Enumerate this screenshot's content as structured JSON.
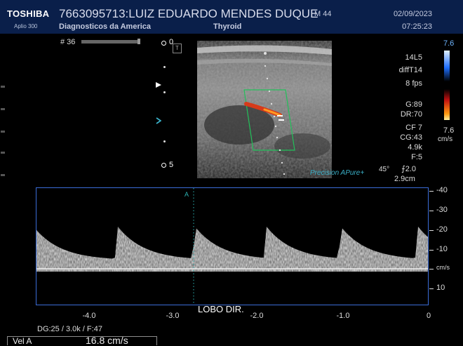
{
  "header": {
    "brand": "TOSHIBA",
    "model": "Aplio 300",
    "patient_line": "7663095713:LUIZ EDUARDO MENDES DUQUE",
    "sex_age": "M 44",
    "institution": "Diagnosticos da America",
    "preset": "Thyroid",
    "date": "02/09/2023",
    "time": "07:25:23"
  },
  "image": {
    "frame_label": "# 36",
    "depth_top": "0",
    "depth_bottom": "5",
    "orientation_mark": "T",
    "probe": "14L5",
    "mode": "diffT14",
    "fps": "8 fps",
    "gain": "G:89",
    "dynamic_range": "DR:70",
    "cf": "CF 7",
    "cg": "CG:43",
    "prf": "4.9k",
    "filter": "F:5",
    "color_scale_max": "7.6",
    "color_scale_min": "7.6",
    "color_scale_unit": "cm/s",
    "precision_text": "Precision  APure+",
    "angle": "45°",
    "sample_volume": "⨍2.0",
    "sv_depth": "2.9cm"
  },
  "doppler": {
    "velocity_ticks": [
      "-40",
      "-30",
      "-20",
      "-10",
      "cm/s",
      "10"
    ],
    "time_ticks": [
      "-4.0",
      "-3.0",
      "-2.0",
      "-1.0",
      "0"
    ],
    "annotation": "LOBO DIR.",
    "settings": "DG:25  / 3.0k    / F:47",
    "trace_color": "#d9d9d9",
    "frame_color": "#3b6dd8"
  },
  "measurement": {
    "label": "Vel  A",
    "value": "16.8 cm/s"
  },
  "colors": {
    "header_bg": "#0a1f4a",
    "precision": "#3ab0c8",
    "roi_box": "#22c05a"
  }
}
